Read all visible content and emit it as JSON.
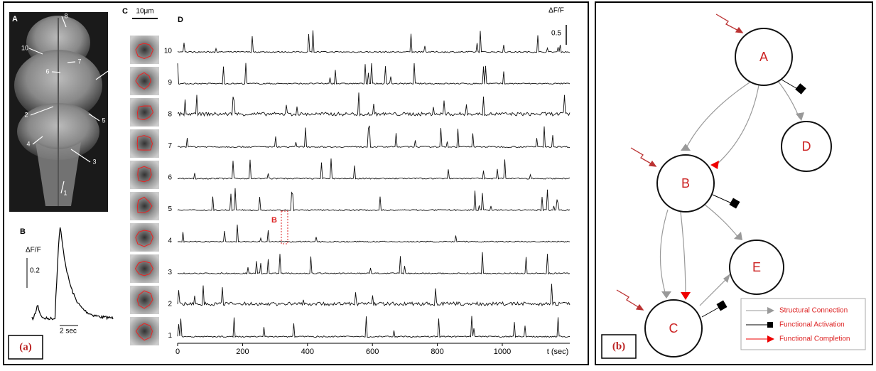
{
  "panel_a": {
    "label": "(a)",
    "brain": {
      "letter": "A",
      "labels": [
        "8",
        "10",
        "7",
        "6",
        "9",
        "2",
        "5",
        "4",
        "3",
        "1"
      ]
    },
    "trace": {
      "letter": "B",
      "y_label": "ΔF/F",
      "scale": "0.2",
      "time_scale": "2 sec"
    },
    "rois": {
      "letter": "C",
      "scale_bar": "10μm"
    },
    "traces": {
      "letter": "D",
      "row_labels": [
        "10",
        "9",
        "8",
        "7",
        "6",
        "5",
        "4",
        "3",
        "2",
        "1"
      ],
      "x_ticks": [
        "0",
        "200",
        "400",
        "600",
        "800",
        "1000"
      ],
      "x_label": "t (sec)",
      "y_label": "ΔF/F",
      "y_scale": "0.5",
      "highlight": "B"
    }
  },
  "panel_b": {
    "label": "(b)",
    "nodes": [
      {
        "label": "A"
      },
      {
        "label": "B"
      },
      {
        "label": "C"
      },
      {
        "label": "D"
      },
      {
        "label": "E"
      }
    ],
    "legend": [
      "Structural Connection",
      "Functional Activation",
      "Functional Completion"
    ]
  }
}
